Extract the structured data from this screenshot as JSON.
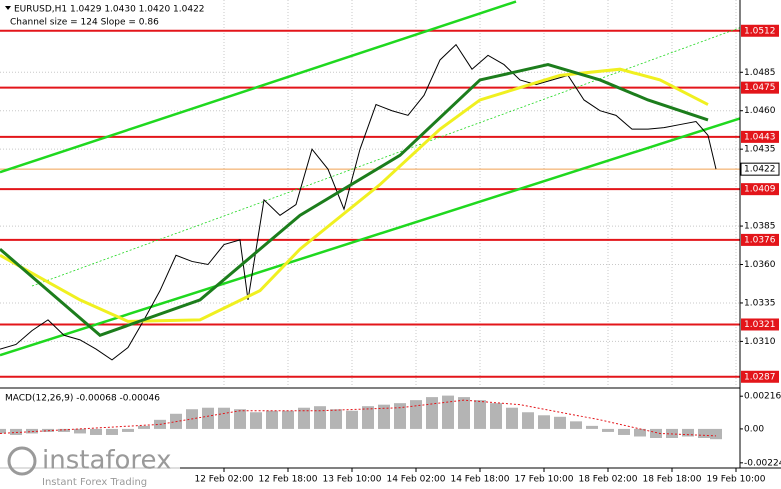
{
  "header": {
    "symbol_line": "EURUSD,H1  1.0429 1.0430 1.0420 1.0422",
    "channel_info": "Channel size = 124  Slope = 0.86"
  },
  "branding": {
    "name": "instaforex",
    "tagline": "Instant Forex Trading"
  },
  "chart_data": [
    {
      "type": "line",
      "xlim": [
        0,
        185
      ],
      "ylim": [
        1.0281,
        1.0532
      ],
      "yticks": [
        1.0485,
        {
          "value": 1.046,
          "label": "1.0460"
        },
        1.0435,
        1.0385,
        {
          "value": 1.036,
          "label": "1.0360"
        },
        1.0335,
        {
          "value": 1.031,
          "label": "1.0310"
        }
      ],
      "xticks": [
        {
          "value": 56,
          "label": "12 Feb 02:00"
        },
        {
          "value": 72,
          "label": "12 Feb 18:00"
        },
        {
          "value": 88,
          "label": "13 Feb 10:00"
        },
        {
          "value": 104,
          "label": "14 Feb 02:00"
        },
        {
          "value": 120,
          "label": "14 Feb 18:00"
        },
        {
          "value": 136,
          "label": "17 Feb 10:00"
        },
        {
          "value": 152,
          "label": "18 Feb 02:00"
        },
        {
          "value": 168,
          "label": "18 Feb 18:00"
        },
        {
          "value": 184,
          "label": "19 Feb 10:00"
        }
      ],
      "grid": true,
      "levels": [
        1.0512,
        1.0475,
        1.0443,
        1.0409,
        1.0376,
        1.0321,
        1.0287
      ],
      "level_color": "#e3151a",
      "last_price": 1.0422,
      "last_price_color": "#f0a050",
      "series": [
        {
          "color": "#1fd81f",
          "width": 2.5,
          "x": [
            0,
            129
          ],
          "values": [
            1.042,
            1.0531
          ]
        },
        {
          "color": "#1fd81f",
          "width": 2.5,
          "x": [
            0,
            185
          ],
          "values": [
            1.0301,
            1.0455
          ]
        },
        {
          "color": "#1fd81f",
          "width": 0.8,
          "dash": true,
          "x": [
            8,
            185
          ],
          "values": [
            1.0346,
            1.0514
          ]
        },
        {
          "color": "#000000",
          "width": 1,
          "x": [
            0,
            4,
            8,
            12,
            16,
            20,
            24,
            28,
            32,
            36,
            40,
            44,
            48,
            52,
            56,
            60,
            62,
            66,
            70,
            74,
            78,
            82,
            86,
            90,
            94,
            98,
            102,
            106,
            110,
            114,
            118,
            122,
            126,
            130,
            134,
            138,
            142,
            146,
            150,
            154,
            158,
            162,
            166,
            170,
            174,
            177,
            179
          ],
          "values": [
            1.0305,
            1.0308,
            1.0317,
            1.0324,
            1.0314,
            1.0311,
            1.0305,
            1.0298,
            1.0306,
            1.0324,
            1.0343,
            1.0366,
            1.0362,
            1.036,
            1.0373,
            1.0376,
            1.0337,
            1.0402,
            1.0392,
            1.0399,
            1.0435,
            1.0422,
            1.0396,
            1.0435,
            1.0464,
            1.046,
            1.0457,
            1.047,
            1.0493,
            1.0503,
            1.0487,
            1.0496,
            1.049,
            1.048,
            1.0477,
            1.048,
            1.0483,
            1.0467,
            1.046,
            1.0457,
            1.0448,
            1.0448,
            1.0449,
            1.0451,
            1.0453,
            1.0444,
            1.0422
          ]
        },
        {
          "color": "#f0f020",
          "width": 3,
          "x": [
            0,
            20,
            32,
            50,
            65,
            75,
            95,
            110,
            120,
            140,
            155,
            165,
            177
          ],
          "values": [
            1.0366,
            1.0337,
            1.0323,
            1.0324,
            1.0343,
            1.037,
            1.0412,
            1.0448,
            1.0467,
            1.0483,
            1.0487,
            1.048,
            1.0464
          ]
        },
        {
          "color": "#1c7d1c",
          "width": 3,
          "x": [
            0,
            25,
            50,
            75,
            100,
            120,
            137,
            150,
            162,
            177
          ],
          "values": [
            1.037,
            1.0314,
            1.0337,
            1.0392,
            1.0431,
            1.048,
            1.049,
            1.048,
            1.0467,
            1.0454
          ]
        }
      ]
    },
    {
      "type": "bar",
      "title": "MACD(12,26,9) -0.00068 -0.00046",
      "xlim": [
        0,
        185
      ],
      "ylim": [
        -0.00245,
        0.00257
      ],
      "yticks": [
        0.00216,
        {
          "value": 0,
          "label": "0.00"
        },
        -0.00224
      ],
      "series": [
        {
          "type": "bar",
          "color": "#b4b4b4",
          "x": [
            0,
            4,
            8,
            12,
            16,
            20,
            24,
            28,
            32,
            36,
            40,
            44,
            48,
            52,
            56,
            60,
            64,
            68,
            72,
            76,
            80,
            84,
            88,
            92,
            96,
            100,
            104,
            108,
            112,
            116,
            120,
            124,
            128,
            132,
            136,
            140,
            144,
            148,
            152,
            156,
            160,
            164,
            168,
            172,
            176,
            179
          ],
          "values": [
            -0.0003,
            -0.0004,
            -0.0003,
            -0.0002,
            -0.0002,
            -0.0003,
            -0.0004,
            -0.0004,
            -0.0002,
            0.0002,
            0.0006,
            0.001,
            0.0013,
            0.0014,
            0.0014,
            0.0013,
            0.0011,
            0.0012,
            0.0012,
            0.0014,
            0.0015,
            0.0013,
            0.0012,
            0.0015,
            0.0016,
            0.0017,
            0.0019,
            0.0021,
            0.0022,
            0.0021,
            0.0019,
            0.0017,
            0.0014,
            0.0011,
            0.0009,
            0.0008,
            0.0005,
            0.0002,
            -0.0002,
            -0.0004,
            -0.0005,
            -0.0006,
            -0.0006,
            -0.0005,
            -0.0006,
            -0.00068
          ]
        },
        {
          "type": "line",
          "color": "#e3151a",
          "dash": true,
          "x": [
            0,
            40,
            60,
            80,
            100,
            116,
            130,
            150,
            165,
            179
          ],
          "values": [
            -0.0003,
            0.0003,
            0.0012,
            0.0012,
            0.0014,
            0.0019,
            0.0016,
            0.0006,
            -0.0003,
            -0.00046
          ]
        }
      ]
    }
  ]
}
